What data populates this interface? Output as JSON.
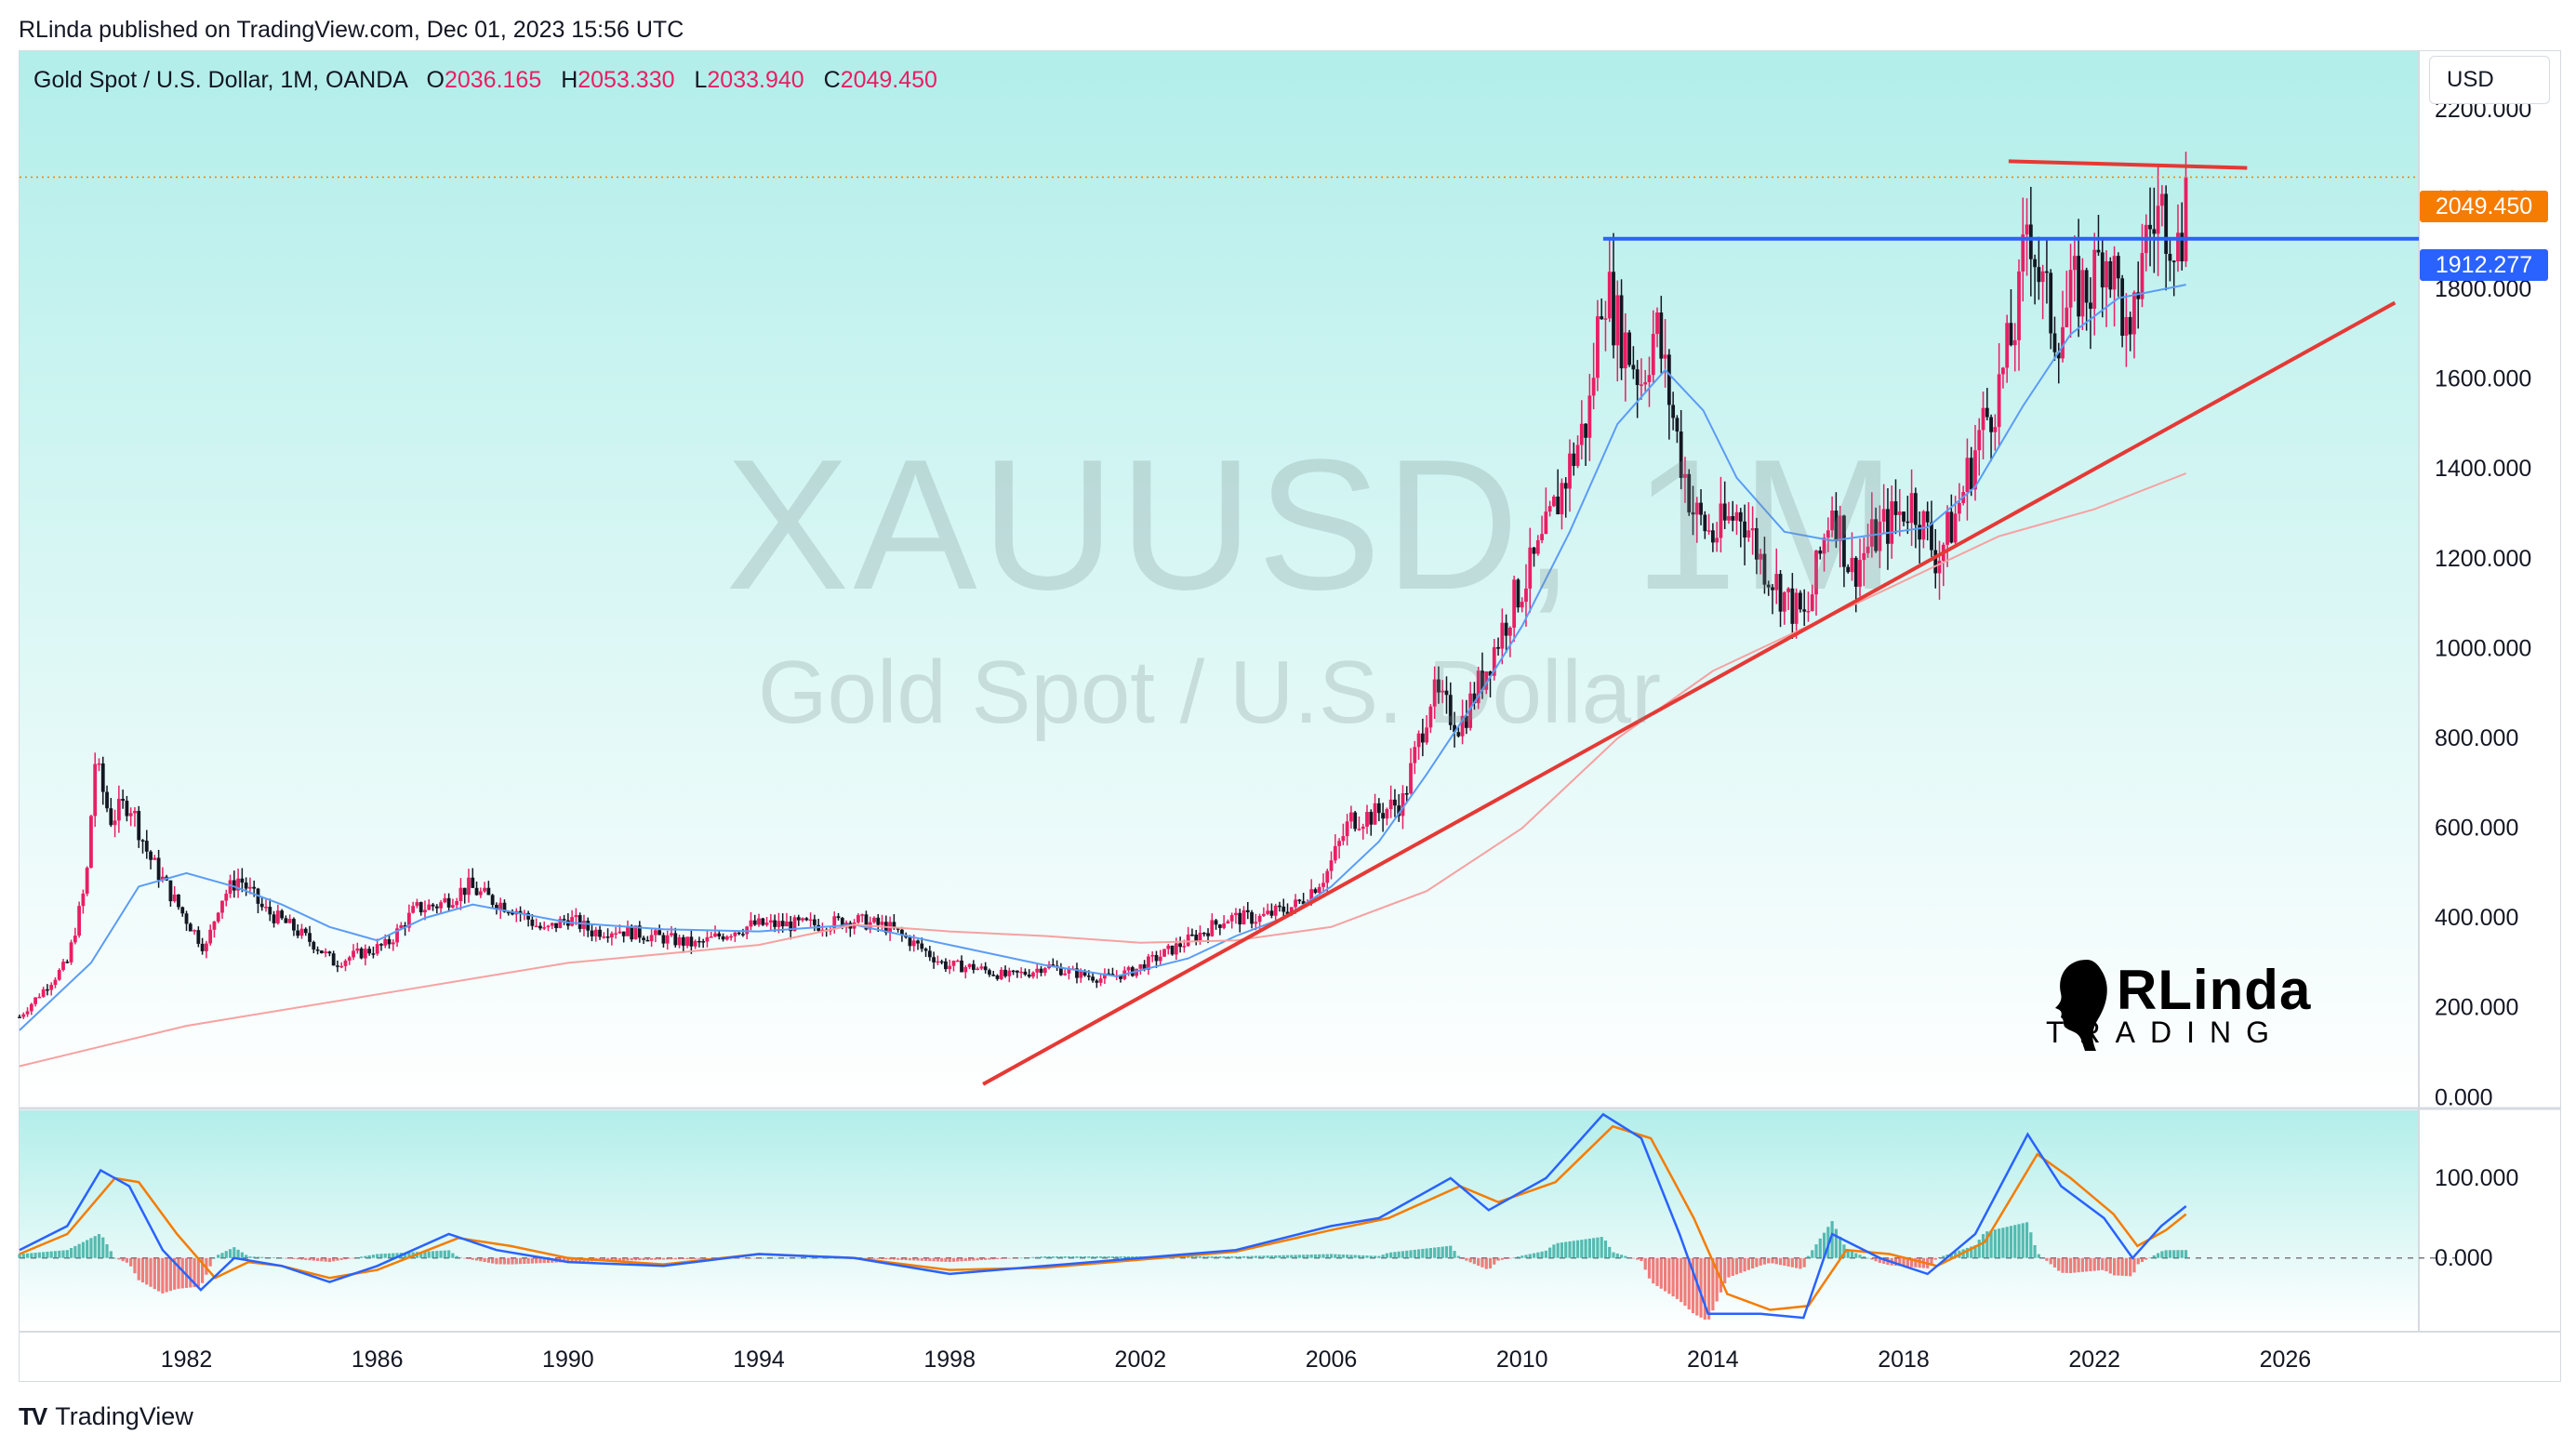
{
  "caption": "RLinda published on TradingView.com, Dec 01, 2023 15:56 UTC",
  "legend": {
    "instrument": "Gold Spot / U.S. Dollar, 1M, OANDA",
    "o_label": "O",
    "o_value": "2036.165",
    "h_label": "H",
    "h_value": "2053.330",
    "l_label": "L",
    "l_value": "2033.940",
    "c_label": "C",
    "c_value": "2049.450"
  },
  "currency": "USD",
  "last_price_label": "2049.450",
  "level_label": "1912.277",
  "watermark": {
    "symbol": "XAUUSD, 1M",
    "name": "Gold Spot / U.S. Dollar"
  },
  "brand": {
    "main": "RLinda",
    "sub": "TRADING"
  },
  "footer": {
    "logo": "TV",
    "name": "TradingView"
  },
  "colors": {
    "bg_top": "#b2eeea",
    "bg_bottom": "#ffffff",
    "up": "#e91e63",
    "down": "#131722",
    "ma_fast": "#5b9cf6",
    "ma_slow": "#f7a1a1",
    "trendline": "#e53935",
    "level": "#2962ff",
    "macd": "#2962ff",
    "signal": "#f57c00",
    "hist_pos": "#26a69a",
    "hist_neg": "#ef5350",
    "last": "#f57c00"
  },
  "chart_data": [
    {
      "type": "candlestick",
      "symbol": "XAUUSD",
      "timeframe": "1M",
      "x_axis": {
        "type": "year",
        "range": [
          1978.5,
          2028.8
        ],
        "ticks": [
          "1982",
          "1986",
          "1990",
          "1994",
          "1998",
          "2002",
          "2006",
          "2010",
          "2014",
          "2018",
          "2022",
          "2026"
        ]
      },
      "y_axis": {
        "range": [
          -20,
          2330
        ],
        "ticks": [
          "0.000",
          "200.000",
          "400.000",
          "600.000",
          "800.000",
          "1000.000",
          "1200.000",
          "1400.000",
          "1600.000",
          "1800.000",
          "2000.000",
          "2200.000"
        ]
      },
      "close_series": [
        [
          1978.5,
          180
        ],
        [
          1979.5,
          300
        ],
        [
          1979.9,
          480
        ],
        [
          1980.08,
          750
        ],
        [
          1980.4,
          620
        ],
        [
          1980.8,
          660
        ],
        [
          1981.2,
          540
        ],
        [
          1981.8,
          430
        ],
        [
          1982.4,
          330
        ],
        [
          1982.7,
          440
        ],
        [
          1983.1,
          490
        ],
        [
          1983.6,
          420
        ],
        [
          1984.2,
          380
        ],
        [
          1984.7,
          340
        ],
        [
          1985.1,
          300
        ],
        [
          1985.6,
          320
        ],
        [
          1986.2,
          340
        ],
        [
          1986.8,
          420
        ],
        [
          1987.3,
          430
        ],
        [
          1987.9,
          470
        ],
        [
          1988.4,
          440
        ],
        [
          1988.9,
          420
        ],
        [
          1989.5,
          370
        ],
        [
          1990.0,
          400
        ],
        [
          1990.5,
          370
        ],
        [
          1991.0,
          375
        ],
        [
          1991.5,
          365
        ],
        [
          1992.0,
          355
        ],
        [
          1992.7,
          340
        ],
        [
          1993.4,
          370
        ],
        [
          1993.9,
          385
        ],
        [
          1994.5,
          385
        ],
        [
          1995.2,
          385
        ],
        [
          1996.0,
          395
        ],
        [
          1996.7,
          380
        ],
        [
          1997.3,
          340
        ],
        [
          1997.9,
          295
        ],
        [
          1998.5,
          290
        ],
        [
          1999.2,
          270
        ],
        [
          1999.7,
          280
        ],
        [
          2000.0,
          295
        ],
        [
          2000.5,
          280
        ],
        [
          2001.2,
          265
        ],
        [
          2001.8,
          280
        ],
        [
          2002.4,
          315
        ],
        [
          2003.0,
          350
        ],
        [
          2003.8,
          400
        ],
        [
          2004.5,
          400
        ],
        [
          2005.3,
          430
        ],
        [
          2005.9,
          500
        ],
        [
          2006.4,
          620
        ],
        [
          2006.9,
          630
        ],
        [
          2007.5,
          660
        ],
        [
          2008.1,
          900
        ],
        [
          2008.7,
          830
        ],
        [
          2009.1,
          920
        ],
        [
          2009.8,
          1100
        ],
        [
          2010.4,
          1220
        ],
        [
          2010.9,
          1380
        ],
        [
          2011.4,
          1520
        ],
        [
          2011.7,
          1830
        ],
        [
          2012.0,
          1720
        ],
        [
          2012.5,
          1600
        ],
        [
          2012.8,
          1720
        ],
        [
          2013.3,
          1440
        ],
        [
          2013.6,
          1300
        ],
        [
          2014.0,
          1250
        ],
        [
          2014.6,
          1310
        ],
        [
          2015.0,
          1200
        ],
        [
          2015.6,
          1100
        ],
        [
          2015.95,
          1060
        ],
        [
          2016.5,
          1330
        ],
        [
          2016.9,
          1170
        ],
        [
          2017.4,
          1250
        ],
        [
          2017.9,
          1300
        ],
        [
          2018.2,
          1330
        ],
        [
          2018.7,
          1200
        ],
        [
          2019.1,
          1300
        ],
        [
          2019.6,
          1480
        ],
        [
          2020.0,
          1580
        ],
        [
          2020.4,
          1750
        ],
        [
          2020.6,
          1970
        ],
        [
          2020.9,
          1800
        ],
        [
          2021.2,
          1700
        ],
        [
          2021.6,
          1800
        ],
        [
          2021.9,
          1800
        ],
        [
          2022.2,
          1900
        ],
        [
          2022.5,
          1800
        ],
        [
          2022.75,
          1640
        ],
        [
          2023.0,
          1900
        ],
        [
          2023.4,
          1980
        ],
        [
          2023.7,
          1920
        ],
        [
          2023.8,
          1860
        ],
        [
          2023.92,
          2049.45
        ]
      ],
      "ma_fast": [
        [
          1978.5,
          150
        ],
        [
          1980,
          300
        ],
        [
          1981,
          470
        ],
        [
          1982,
          500
        ],
        [
          1983,
          470
        ],
        [
          1984,
          430
        ],
        [
          1985,
          380
        ],
        [
          1986,
          350
        ],
        [
          1987,
          400
        ],
        [
          1988,
          430
        ],
        [
          1989,
          410
        ],
        [
          1990,
          390
        ],
        [
          1992,
          375
        ],
        [
          1994,
          370
        ],
        [
          1996,
          385
        ],
        [
          1998,
          340
        ],
        [
          2000,
          295
        ],
        [
          2001.5,
          270
        ],
        [
          2003,
          310
        ],
        [
          2004,
          360
        ],
        [
          2005,
          400
        ],
        [
          2006,
          470
        ],
        [
          2007,
          570
        ],
        [
          2008,
          720
        ],
        [
          2009,
          880
        ],
        [
          2010,
          1050
        ],
        [
          2011,
          1260
        ],
        [
          2012,
          1500
        ],
        [
          2013,
          1620
        ],
        [
          2013.8,
          1530
        ],
        [
          2014.5,
          1380
        ],
        [
          2015.5,
          1260
        ],
        [
          2016.5,
          1240
        ],
        [
          2017.5,
          1255
        ],
        [
          2018.5,
          1270
        ],
        [
          2019.5,
          1360
        ],
        [
          2020.5,
          1540
        ],
        [
          2021.5,
          1700
        ],
        [
          2022.5,
          1780
        ],
        [
          2023.92,
          1810
        ]
      ],
      "ma_slow": [
        [
          1978.5,
          70
        ],
        [
          1982,
          160
        ],
        [
          1986,
          230
        ],
        [
          1990,
          300
        ],
        [
          1994,
          340
        ],
        [
          1996,
          385
        ],
        [
          1998,
          370
        ],
        [
          2000,
          360
        ],
        [
          2002,
          345
        ],
        [
          2004,
          350
        ],
        [
          2006,
          380
        ],
        [
          2008,
          460
        ],
        [
          2010,
          600
        ],
        [
          2012,
          800
        ],
        [
          2014,
          950
        ],
        [
          2016,
          1050
        ],
        [
          2018,
          1150
        ],
        [
          2020,
          1250
        ],
        [
          2022,
          1310
        ],
        [
          2023.92,
          1390
        ]
      ],
      "lines": [
        {
          "kind": "trendline",
          "from": [
            1998.7,
            30
          ],
          "to": [
            2028.3,
            1770
          ]
        },
        {
          "kind": "horizontal",
          "from": [
            2011.7,
            1912.277
          ],
          "to": [
            2028.8,
            1912.277
          ]
        },
        {
          "kind": "trendline",
          "from": [
            2020.2,
            2085
          ],
          "to": [
            2025.2,
            2070
          ]
        }
      ],
      "last_price": 2049.45
    },
    {
      "type": "line",
      "indicator": "MACD",
      "y_axis": {
        "range": [
          -90,
          185
        ],
        "ticks": [
          "100.000",
          "0.000"
        ]
      },
      "series": [
        {
          "role": "macd",
          "points": [
            [
              1978.5,
              10
            ],
            [
              1979.5,
              40
            ],
            [
              1980.2,
              110
            ],
            [
              1980.8,
              90
            ],
            [
              1981.5,
              10
            ],
            [
              1982.3,
              -40
            ],
            [
              1983,
              0
            ],
            [
              1984,
              -10
            ],
            [
              1985,
              -30
            ],
            [
              1986,
              -10
            ],
            [
              1987.5,
              30
            ],
            [
              1988.5,
              10
            ],
            [
              1990,
              -5
            ],
            [
              1992,
              -10
            ],
            [
              1994,
              5
            ],
            [
              1996,
              0
            ],
            [
              1998,
              -20
            ],
            [
              2000,
              -10
            ],
            [
              2002,
              0
            ],
            [
              2004,
              10
            ],
            [
              2006,
              40
            ],
            [
              2007,
              50
            ],
            [
              2008.5,
              100
            ],
            [
              2009.3,
              60
            ],
            [
              2010.5,
              100
            ],
            [
              2011.7,
              180
            ],
            [
              2012.5,
              150
            ],
            [
              2013.3,
              30
            ],
            [
              2013.9,
              -70
            ],
            [
              2015,
              -70
            ],
            [
              2015.9,
              -75
            ],
            [
              2016.5,
              30
            ],
            [
              2017.5,
              0
            ],
            [
              2018.5,
              -20
            ],
            [
              2019.5,
              30
            ],
            [
              2020.6,
              155
            ],
            [
              2021.3,
              90
            ],
            [
              2022.2,
              50
            ],
            [
              2022.8,
              0
            ],
            [
              2023.4,
              40
            ],
            [
              2023.92,
              65
            ]
          ]
        },
        {
          "role": "signal",
          "points": [
            [
              1978.5,
              5
            ],
            [
              1979.5,
              30
            ],
            [
              1980.5,
              100
            ],
            [
              1981,
              95
            ],
            [
              1981.8,
              30
            ],
            [
              1982.6,
              -25
            ],
            [
              1983.3,
              -5
            ],
            [
              1984,
              -10
            ],
            [
              1985,
              -25
            ],
            [
              1986,
              -15
            ],
            [
              1987.7,
              25
            ],
            [
              1988.8,
              15
            ],
            [
              1990,
              0
            ],
            [
              1992,
              -8
            ],
            [
              1994,
              5
            ],
            [
              1996,
              0
            ],
            [
              1998,
              -15
            ],
            [
              2000,
              -12
            ],
            [
              2002,
              -2
            ],
            [
              2004,
              8
            ],
            [
              2006,
              35
            ],
            [
              2007.2,
              50
            ],
            [
              2008.7,
              90
            ],
            [
              2009.5,
              70
            ],
            [
              2010.7,
              95
            ],
            [
              2011.9,
              165
            ],
            [
              2012.7,
              150
            ],
            [
              2013.6,
              50
            ],
            [
              2014.3,
              -45
            ],
            [
              2015.2,
              -65
            ],
            [
              2016,
              -60
            ],
            [
              2016.8,
              10
            ],
            [
              2017.7,
              5
            ],
            [
              2018.7,
              -10
            ],
            [
              2019.7,
              20
            ],
            [
              2020.8,
              130
            ],
            [
              2021.5,
              100
            ],
            [
              2022.4,
              55
            ],
            [
              2022.9,
              15
            ],
            [
              2023.5,
              35
            ],
            [
              2023.92,
              55
            ]
          ]
        }
      ],
      "histogram_fn": "macd_minus_signal"
    }
  ]
}
